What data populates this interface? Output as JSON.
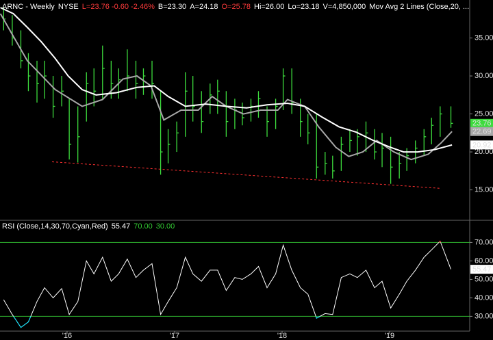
{
  "chart_data": [
    {
      "type": "ohlc",
      "title_parts": [
        {
          "text": "ARNC - Weekly",
          "color": "#ffffff"
        },
        {
          "text": "NYSE",
          "color": "#ffffff"
        },
        {
          "text": "L=23.76 -0.60 -2.46%",
          "color": "#ff3b3b"
        },
        {
          "text": "B=23.30",
          "color": "#ffffff"
        },
        {
          "text": "A=24.18",
          "color": "#ffffff"
        },
        {
          "text": "O=25.78",
          "color": "#ff3b3b"
        },
        {
          "text": "Hi=26.00",
          "color": "#ffffff"
        },
        {
          "text": "Lo=23.18",
          "color": "#ffffff"
        },
        {
          "text": "V=4,850,000",
          "color": "#ffffff"
        },
        {
          "text": "Mov Avg 2 Lines (Close,20, ...",
          "color": "#ffffff"
        }
      ],
      "x": [
        2015.41,
        2015.49,
        2015.57,
        2015.64,
        2015.72,
        2015.79,
        2015.87,
        2015.95,
        2016.02,
        2016.1,
        2016.18,
        2016.25,
        2016.33,
        2016.41,
        2016.48,
        2016.56,
        2016.64,
        2016.71,
        2016.79,
        2016.87,
        2016.94,
        2017.02,
        2017.1,
        2017.17,
        2017.25,
        2017.33,
        2017.4,
        2017.48,
        2017.56,
        2017.63,
        2017.71,
        2017.78,
        2017.86,
        2017.94,
        2018.01,
        2018.09,
        2018.17,
        2018.24,
        2018.32,
        2018.4,
        2018.47,
        2018.55,
        2018.63,
        2018.7,
        2018.78,
        2018.86,
        2018.93,
        2019.01,
        2019.09,
        2019.16,
        2019.24,
        2019.32,
        2019.39,
        2019.47,
        2019.57
      ],
      "high": [
        39,
        38,
        36,
        33,
        32,
        32,
        30,
        30,
        27,
        26,
        30.5,
        31,
        34,
        32,
        31,
        33.5,
        32,
        31,
        32,
        28,
        23,
        24,
        30.5,
        30,
        28,
        29,
        29.5,
        28,
        27,
        26.5,
        27,
        28,
        26,
        27,
        31,
        31,
        27,
        25,
        25,
        20,
        19.5,
        22,
        23,
        23,
        24,
        23,
        22.5,
        22,
        20,
        20.5,
        21.5,
        23,
        24.5,
        26,
        26
      ],
      "low": [
        36,
        34,
        31,
        28,
        26.5,
        27,
        24.5,
        26,
        19,
        18.6,
        24,
        26,
        27,
        27,
        27,
        28,
        27,
        27.5,
        27,
        17,
        18.5,
        20,
        22,
        24,
        22.5,
        25,
        25,
        22,
        23,
        23.5,
        24,
        24.5,
        22,
        23,
        25.5,
        25,
        22,
        21,
        16.5,
        17,
        16.5,
        17.5,
        20,
        19.5,
        20,
        19,
        18,
        15.8,
        16.5,
        17.5,
        18.5,
        19.5,
        21,
        22,
        23.18
      ],
      "close": [
        37.5,
        35,
        32,
        30,
        29,
        30,
        26,
        28,
        21,
        22,
        29,
        28,
        31,
        29,
        29.5,
        30,
        29,
        30,
        29,
        20,
        21,
        22.5,
        28,
        26,
        24,
        27.5,
        28,
        24,
        25.5,
        24.5,
        26,
        27,
        24,
        26,
        30,
        26.5,
        24,
        22.5,
        18,
        18.5,
        17.5,
        21,
        21.5,
        22,
        22.5,
        20,
        20.5,
        18,
        18.5,
        19.5,
        20.5,
        22,
        23.5,
        25,
        23.76
      ],
      "color": "#3ddc3d",
      "series": [
        {
          "color": "#a8a8a8",
          "x": [
            2015.38,
            2015.63,
            2015.89,
            2016.14,
            2016.33,
            2016.52,
            2016.65,
            2016.78,
            2016.9,
            2017.06,
            2017.22,
            2017.35,
            2017.48,
            2017.64,
            2017.8,
            2017.96,
            2018.05,
            2018.21,
            2018.34,
            2018.5,
            2018.62,
            2018.75,
            2018.88,
            2019.04,
            2019.2,
            2019.36,
            2019.48,
            2019.58
          ],
          "values": [
            38.2,
            32,
            28.2,
            26,
            26.9,
            29.6,
            30,
            28.7,
            24.2,
            25.5,
            25.5,
            27.3,
            26,
            25,
            25.5,
            25.5,
            26.9,
            26,
            23.3,
            20.6,
            19.4,
            20,
            21.5,
            20,
            19,
            19.7,
            21.2,
            22.69
          ]
        },
        {
          "color": "#ffffff",
          "x": [
            2015.38,
            2015.5,
            2015.63,
            2015.76,
            2015.89,
            2016.01,
            2016.14,
            2016.27,
            2016.46,
            2016.65,
            2016.81,
            2016.94,
            2017.1,
            2017.29,
            2017.48,
            2017.67,
            2017.86,
            2018.05,
            2018.21,
            2018.37,
            2018.53,
            2018.69,
            2018.85,
            2019.01,
            2019.13,
            2019.26,
            2019.42,
            2019.58
          ],
          "values": [
            39,
            38.2,
            36.4,
            34.5,
            32.3,
            30,
            28.2,
            27.5,
            27.8,
            28.5,
            28.7,
            27.3,
            26,
            26.3,
            26,
            25.8,
            26.2,
            26.4,
            26,
            24.6,
            23.3,
            22.6,
            21.5,
            20.6,
            20,
            20,
            20.3,
            20.92
          ]
        }
      ],
      "trendline": {
        "x": [
          2015.86,
          2019.48
        ],
        "values": [
          18.7,
          15.2
        ],
        "color": "#ff3030"
      },
      "xlim": [
        2015.376,
        2019.745
      ],
      "ylim": [
        11,
        40
      ],
      "yticks": [
        {
          "value": 15,
          "label": "15.00"
        },
        {
          "value": 20,
          "label": "20.00"
        },
        {
          "value": 25,
          "label": "25.00"
        },
        {
          "value": 30,
          "label": "30.00"
        },
        {
          "value": 35,
          "label": "35.00"
        }
      ],
      "grid": false
    },
    {
      "type": "line",
      "title_parts": [
        {
          "text": "RSI (Close,14,30,70,Cyan,Red)",
          "color": "#ffffff"
        },
        {
          "text": "55.47",
          "color": "#ffffff"
        },
        {
          "text": "70.00",
          "color": "#33cc33"
        },
        {
          "text": "30.00",
          "color": "#33cc33"
        }
      ],
      "x": [
        2015.41,
        2015.49,
        2015.57,
        2015.64,
        2015.72,
        2015.79,
        2015.87,
        2015.95,
        2016.02,
        2016.1,
        2016.18,
        2016.25,
        2016.33,
        2016.41,
        2016.48,
        2016.56,
        2016.64,
        2016.71,
        2016.79,
        2016.87,
        2016.94,
        2017.02,
        2017.1,
        2017.17,
        2017.25,
        2017.33,
        2017.4,
        2017.48,
        2017.56,
        2017.63,
        2017.71,
        2017.78,
        2017.86,
        2017.94,
        2018.01,
        2018.09,
        2018.17,
        2018.24,
        2018.32,
        2018.4,
        2018.47,
        2018.55,
        2018.63,
        2018.7,
        2018.78,
        2018.86,
        2018.93,
        2019.01,
        2019.09,
        2019.16,
        2019.24,
        2019.32,
        2019.39,
        2019.47,
        2019.57
      ],
      "values": [
        39,
        31,
        24,
        27,
        38,
        45.5,
        40,
        45,
        31,
        38,
        60,
        53,
        62,
        49,
        53,
        61,
        51,
        55,
        58.5,
        31,
        38,
        45.5,
        62,
        53,
        49,
        55,
        55,
        44,
        51,
        50,
        53,
        57,
        45.5,
        53,
        68.5,
        55,
        45.5,
        42,
        29,
        31.5,
        31,
        51,
        53,
        51,
        55,
        45.5,
        49,
        34.5,
        42,
        49,
        55,
        62,
        66,
        70.7,
        55.47
      ],
      "color": "#ffffff",
      "over_color": "#ff3030",
      "under_color": "#00e5ff",
      "ref_lines": [
        70,
        30
      ],
      "ref_color": "#2fb52f",
      "xlim": [
        2015.376,
        2019.745
      ],
      "ylim": [
        22,
        82
      ],
      "yticks": [
        {
          "value": 30,
          "label": "30.00"
        },
        {
          "value": 40,
          "label": "40.00"
        },
        {
          "value": 50,
          "label": "50.00"
        },
        {
          "value": 60,
          "label": "60.00"
        },
        {
          "value": 70,
          "label": "70.00"
        }
      ],
      "xticks": [
        {
          "value": 2016,
          "label": "'16"
        },
        {
          "value": 2017,
          "label": "'17"
        },
        {
          "value": 2018,
          "label": "'18"
        },
        {
          "value": 2019,
          "label": "'19"
        }
      ],
      "grid": false
    }
  ]
}
